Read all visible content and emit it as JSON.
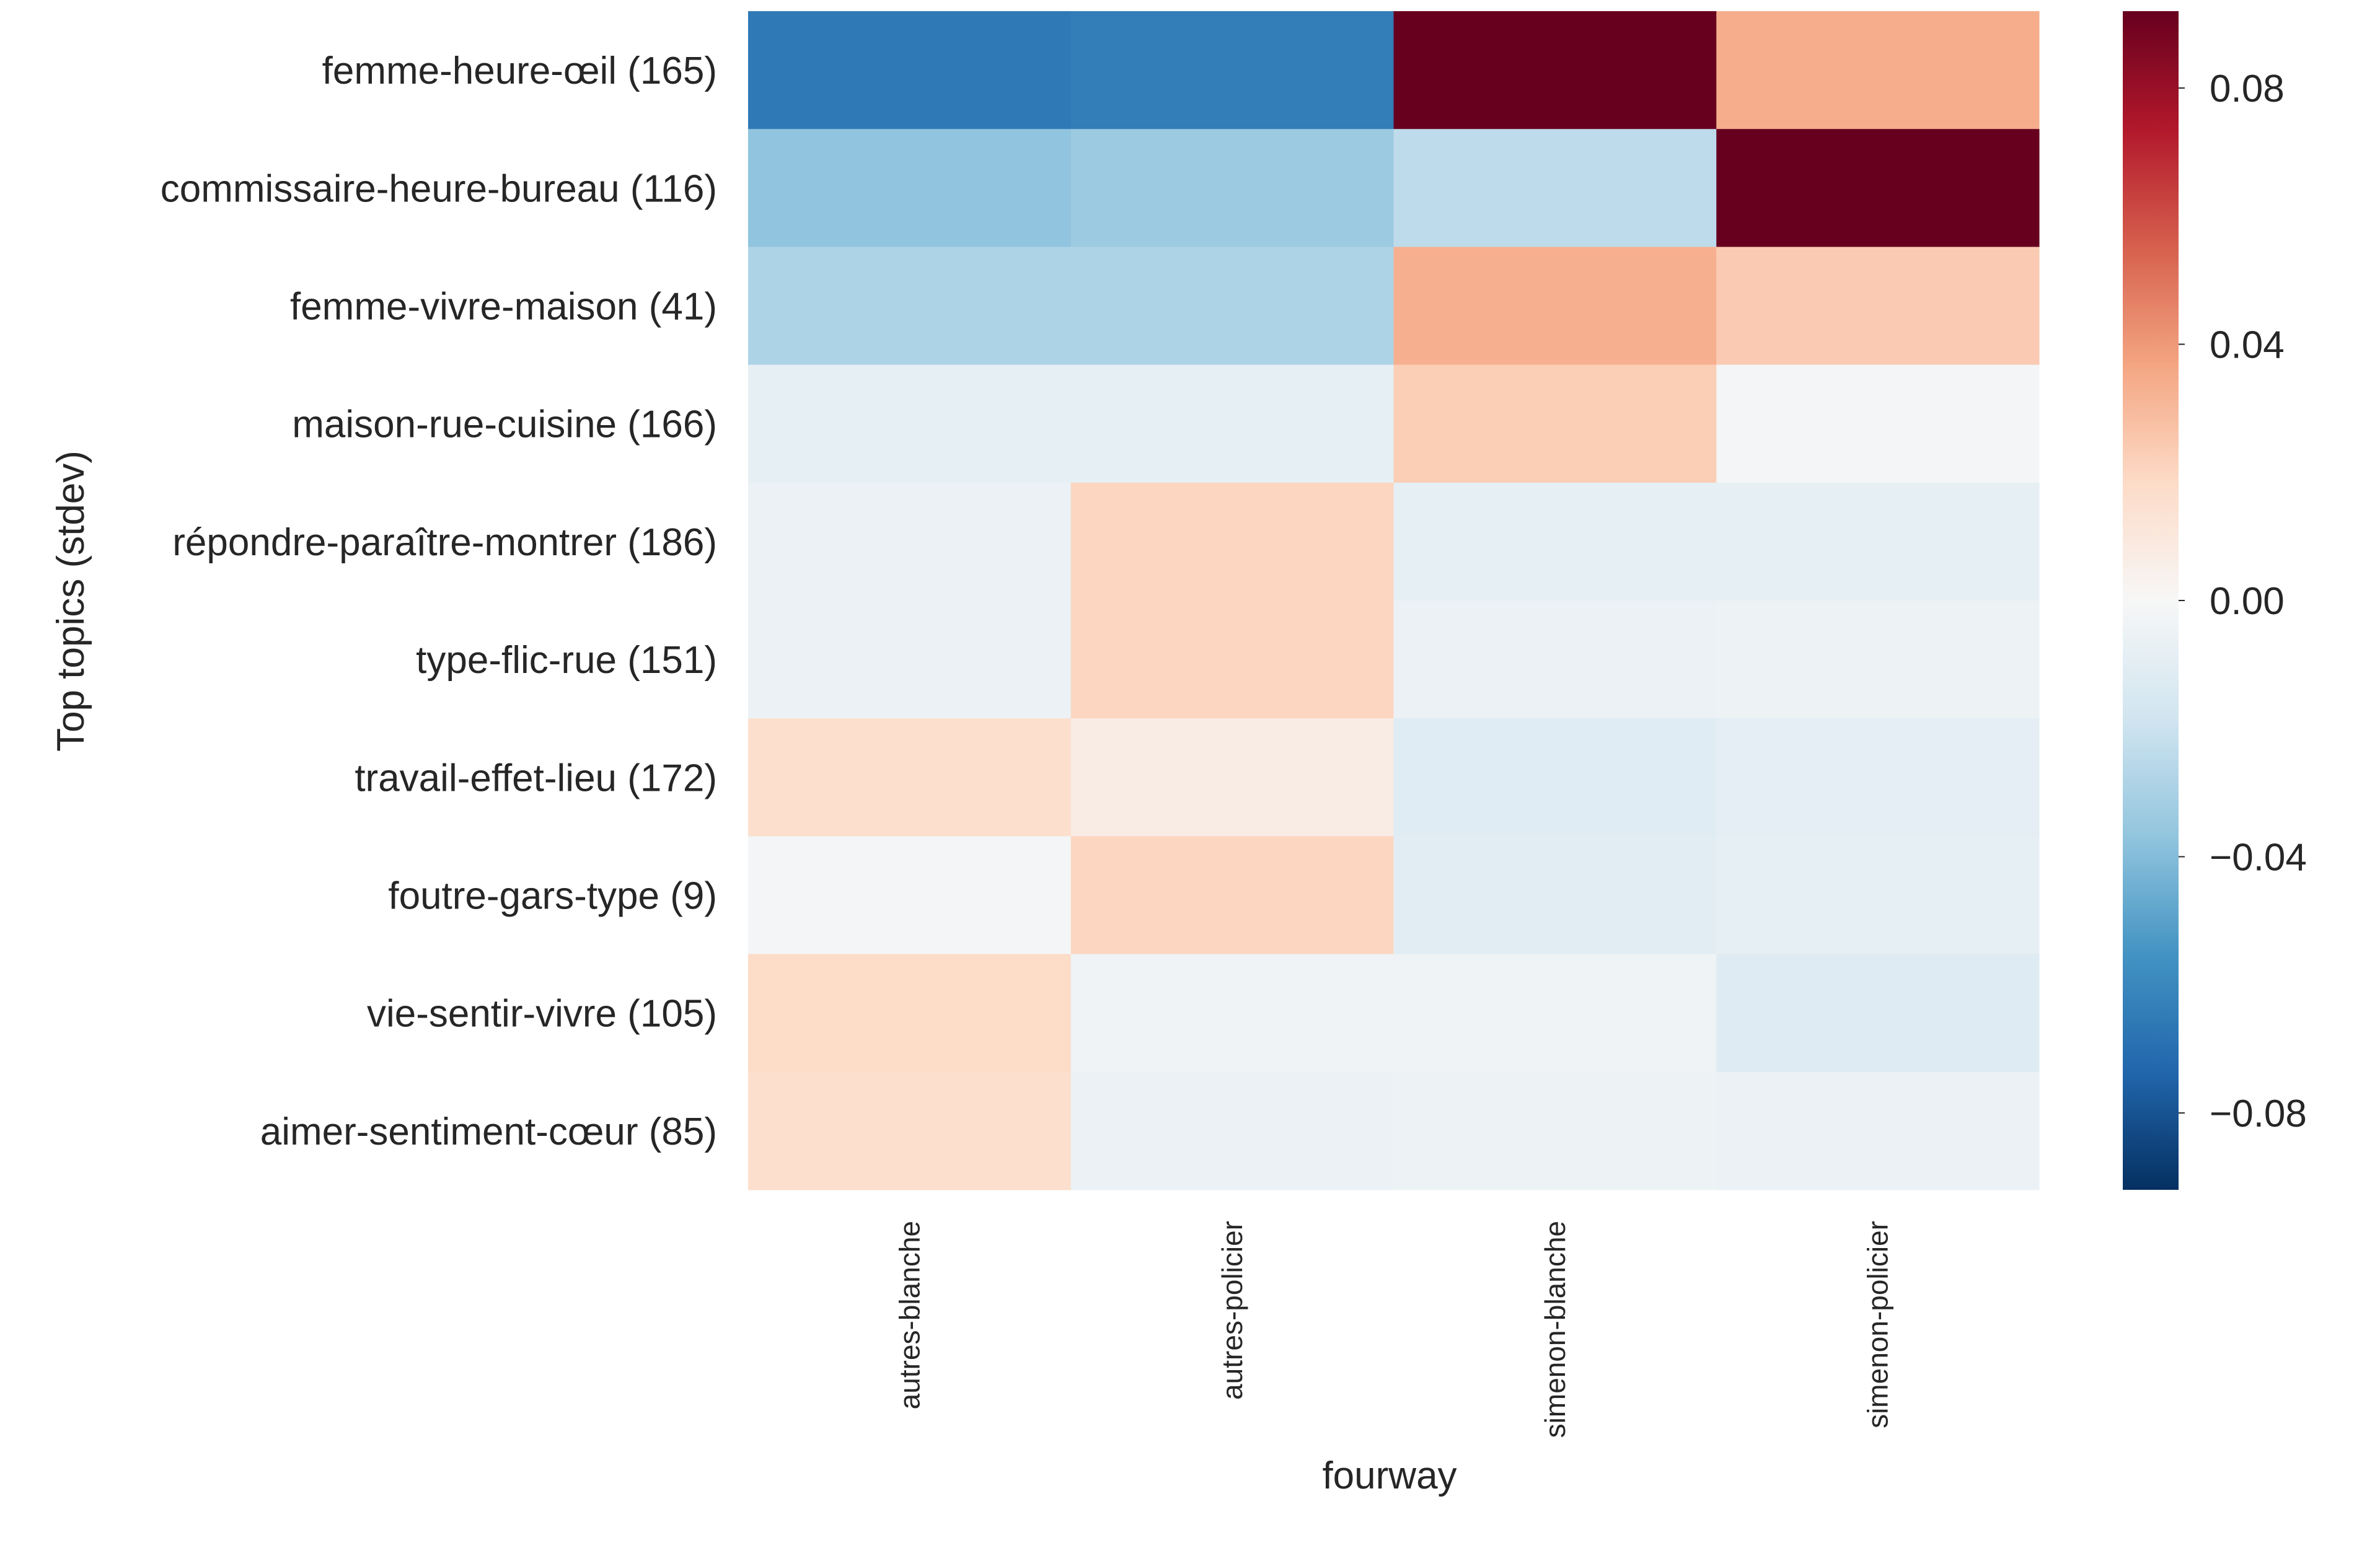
{
  "chart_data": {
    "type": "heatmap",
    "title": "",
    "xlabel": "fourway",
    "ylabel": "Top topics (stdev)",
    "x_categories": [
      "autres-blanche",
      "autres-policier",
      "simenon-blanche",
      "simenon-policier"
    ],
    "y_categories": [
      "femme-heure-œil (165)",
      "commissaire-heure-bureau (116)",
      "femme-vivre-maison (41)",
      "maison-rue-cuisine (166)",
      "répondre-paraître-montrer (186)",
      "type-flic-rue (151)",
      "travail-effet-lieu (172)",
      "foutre-gars-type (9)",
      "vie-sentir-vivre (105)",
      "aimer-sentiment-cœur (85)"
    ],
    "values": [
      [
        -0.066,
        -0.064,
        0.092,
        0.034
      ],
      [
        -0.037,
        -0.034,
        -0.024,
        0.092
      ],
      [
        -0.029,
        -0.029,
        0.033,
        0.024
      ],
      [
        -0.008,
        -0.008,
        0.023,
        -0.002
      ],
      [
        -0.006,
        0.02,
        -0.008,
        -0.008
      ],
      [
        -0.006,
        0.02,
        -0.006,
        -0.005
      ],
      [
        0.016,
        0.007,
        -0.011,
        -0.009
      ],
      [
        -0.002,
        0.02,
        -0.01,
        -0.008
      ],
      [
        0.018,
        -0.004,
        -0.004,
        -0.012
      ],
      [
        0.016,
        -0.006,
        -0.005,
        -0.006
      ]
    ],
    "colorbar": {
      "range": [
        -0.092,
        0.092
      ],
      "ticks": [
        -0.08,
        -0.04,
        0.0,
        0.04,
        0.08
      ],
      "tick_labels": [
        "−0.08",
        "−0.04",
        "0.00",
        "0.04",
        "0.08"
      ],
      "colormap": "RdBu_r"
    },
    "grid": false,
    "legend": "colorbar-right"
  }
}
